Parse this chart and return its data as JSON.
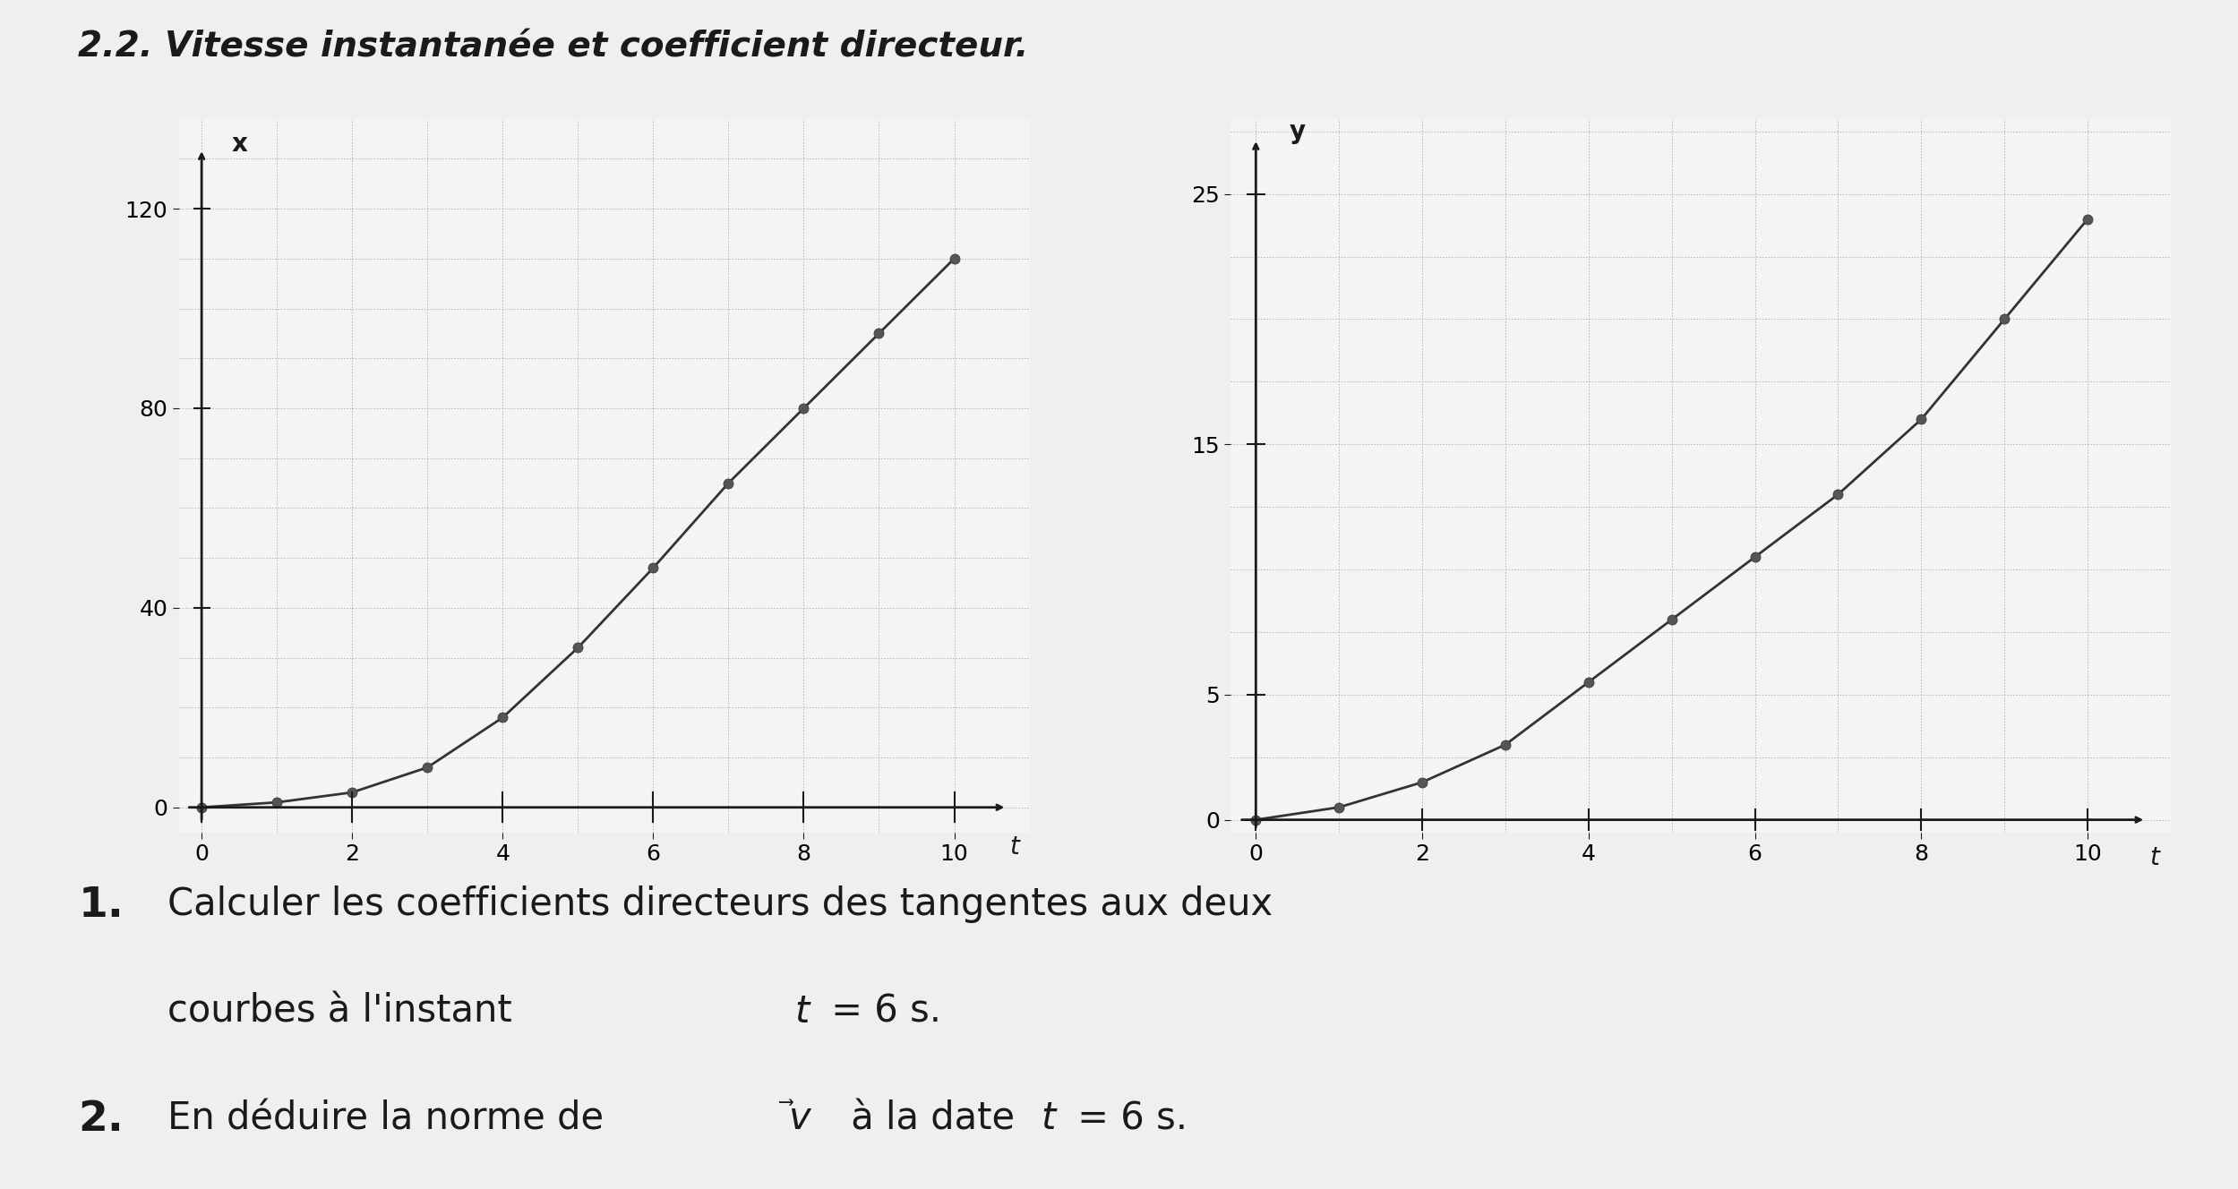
{
  "title": "2.2. Vitesse instantanée et coefficient directeur.",
  "title_fontsize": 28,
  "title_fontweight": "bold",
  "bg_color": "#f0efee",
  "plot_bg": "#f5f4f3",
  "text_color": "#1a1a1a",
  "grid_color": "#b0b0b0",
  "left": {
    "ylabel": "x",
    "xlabel": "t",
    "xlim": [
      -0.3,
      11.0
    ],
    "ylim": [
      -5,
      138
    ],
    "xticks": [
      0,
      2,
      4,
      6,
      8,
      10
    ],
    "yticks": [
      0,
      40,
      80,
      120
    ],
    "t_data": [
      0,
      1,
      2,
      3,
      4,
      5,
      6,
      7,
      8,
      9,
      10
    ],
    "x_data": [
      0,
      1,
      3,
      8,
      18,
      32,
      48,
      65,
      80,
      95,
      110
    ],
    "marker_color": "#444444",
    "line_color": "#333333"
  },
  "right": {
    "ylabel": "y",
    "xlabel": "t",
    "xlim": [
      -0.3,
      11.0
    ],
    "ylim": [
      -0.5,
      28
    ],
    "xticks": [
      0,
      2,
      4,
      6,
      8,
      10
    ],
    "yticks": [
      0,
      5,
      15,
      25
    ],
    "t_data": [
      0,
      1,
      2,
      3,
      4,
      5,
      6,
      7,
      8,
      9,
      10
    ],
    "y_data": [
      0,
      0.5,
      1.5,
      3.0,
      5.5,
      8.0,
      10.5,
      13.0,
      16.0,
      20.0,
      24.0
    ],
    "marker_color": "#444444",
    "line_color": "#333333"
  },
  "text_fontsize": 30,
  "num_fontsize": 34
}
